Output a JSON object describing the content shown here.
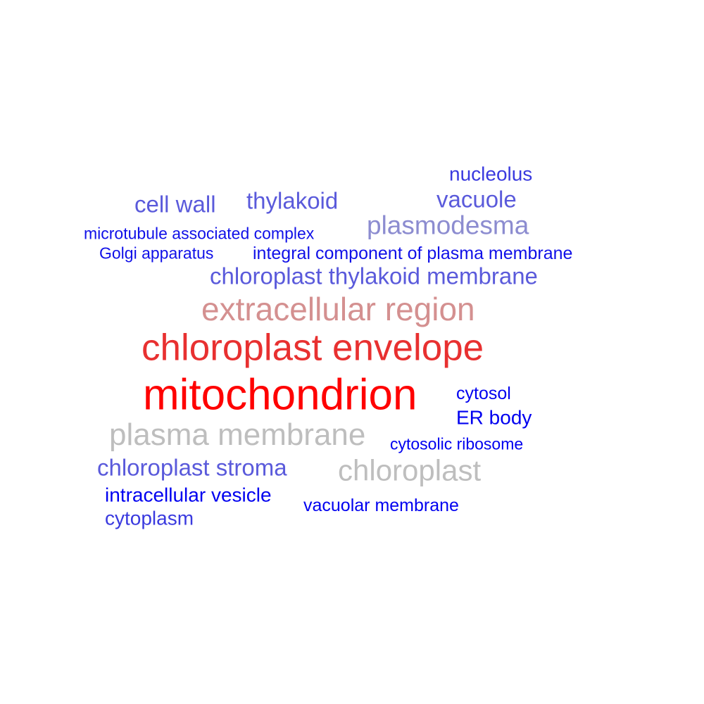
{
  "word_cloud": {
    "words": [
      {
        "id": "w-nucleolus",
        "text": "nucleolus",
        "color": "#3a3adf"
      },
      {
        "id": "w-vacuole",
        "text": "vacuole",
        "color": "#5a5adb"
      },
      {
        "id": "w-cell-wall",
        "text": "cell wall",
        "color": "#5a5adb"
      },
      {
        "id": "w-thylakoid",
        "text": "thylakoid",
        "color": "#5a5adb"
      },
      {
        "id": "w-plasmodesma",
        "text": "plasmodesma",
        "color": "#8c8cd0"
      },
      {
        "id": "w-microtubule",
        "text": "microtubule associated complex",
        "color": "#1010e8"
      },
      {
        "id": "w-golgi",
        "text": "Golgi apparatus",
        "color": "#1010e8"
      },
      {
        "id": "w-integral",
        "text": "integral component of plasma membrane",
        "color": "#1010e8"
      },
      {
        "id": "w-thyl-membrane",
        "text": "chloroplast thylakoid membrane",
        "color": "#5a5adb"
      },
      {
        "id": "w-extracellular",
        "text": "extracellular region",
        "color": "#d49090"
      },
      {
        "id": "w-envelope",
        "text": "chloroplast envelope",
        "color": "#e83030"
      },
      {
        "id": "w-mitochondrion",
        "text": "mitochondrion",
        "color": "#ff0000"
      },
      {
        "id": "w-cytosol",
        "text": "cytosol",
        "color": "#0000f0"
      },
      {
        "id": "w-er-body",
        "text": "ER body",
        "color": "#0000f0"
      },
      {
        "id": "w-plasma-mem",
        "text": "plasma membrane",
        "color": "#bebebe"
      },
      {
        "id": "w-cyto-ribosome",
        "text": "cytosolic ribosome",
        "color": "#0000f0"
      },
      {
        "id": "w-stroma",
        "text": "chloroplast stroma",
        "color": "#5a5adb"
      },
      {
        "id": "w-chloroplast",
        "text": "chloroplast",
        "color": "#bebebe"
      },
      {
        "id": "w-vesicle",
        "text": "intracellular vesicle",
        "color": "#0000f0"
      },
      {
        "id": "w-vac-membrane",
        "text": "vacuolar membrane",
        "color": "#0000f0"
      },
      {
        "id": "w-cytoplasm",
        "text": "cytoplasm",
        "color": "#3a3adf"
      }
    ]
  }
}
